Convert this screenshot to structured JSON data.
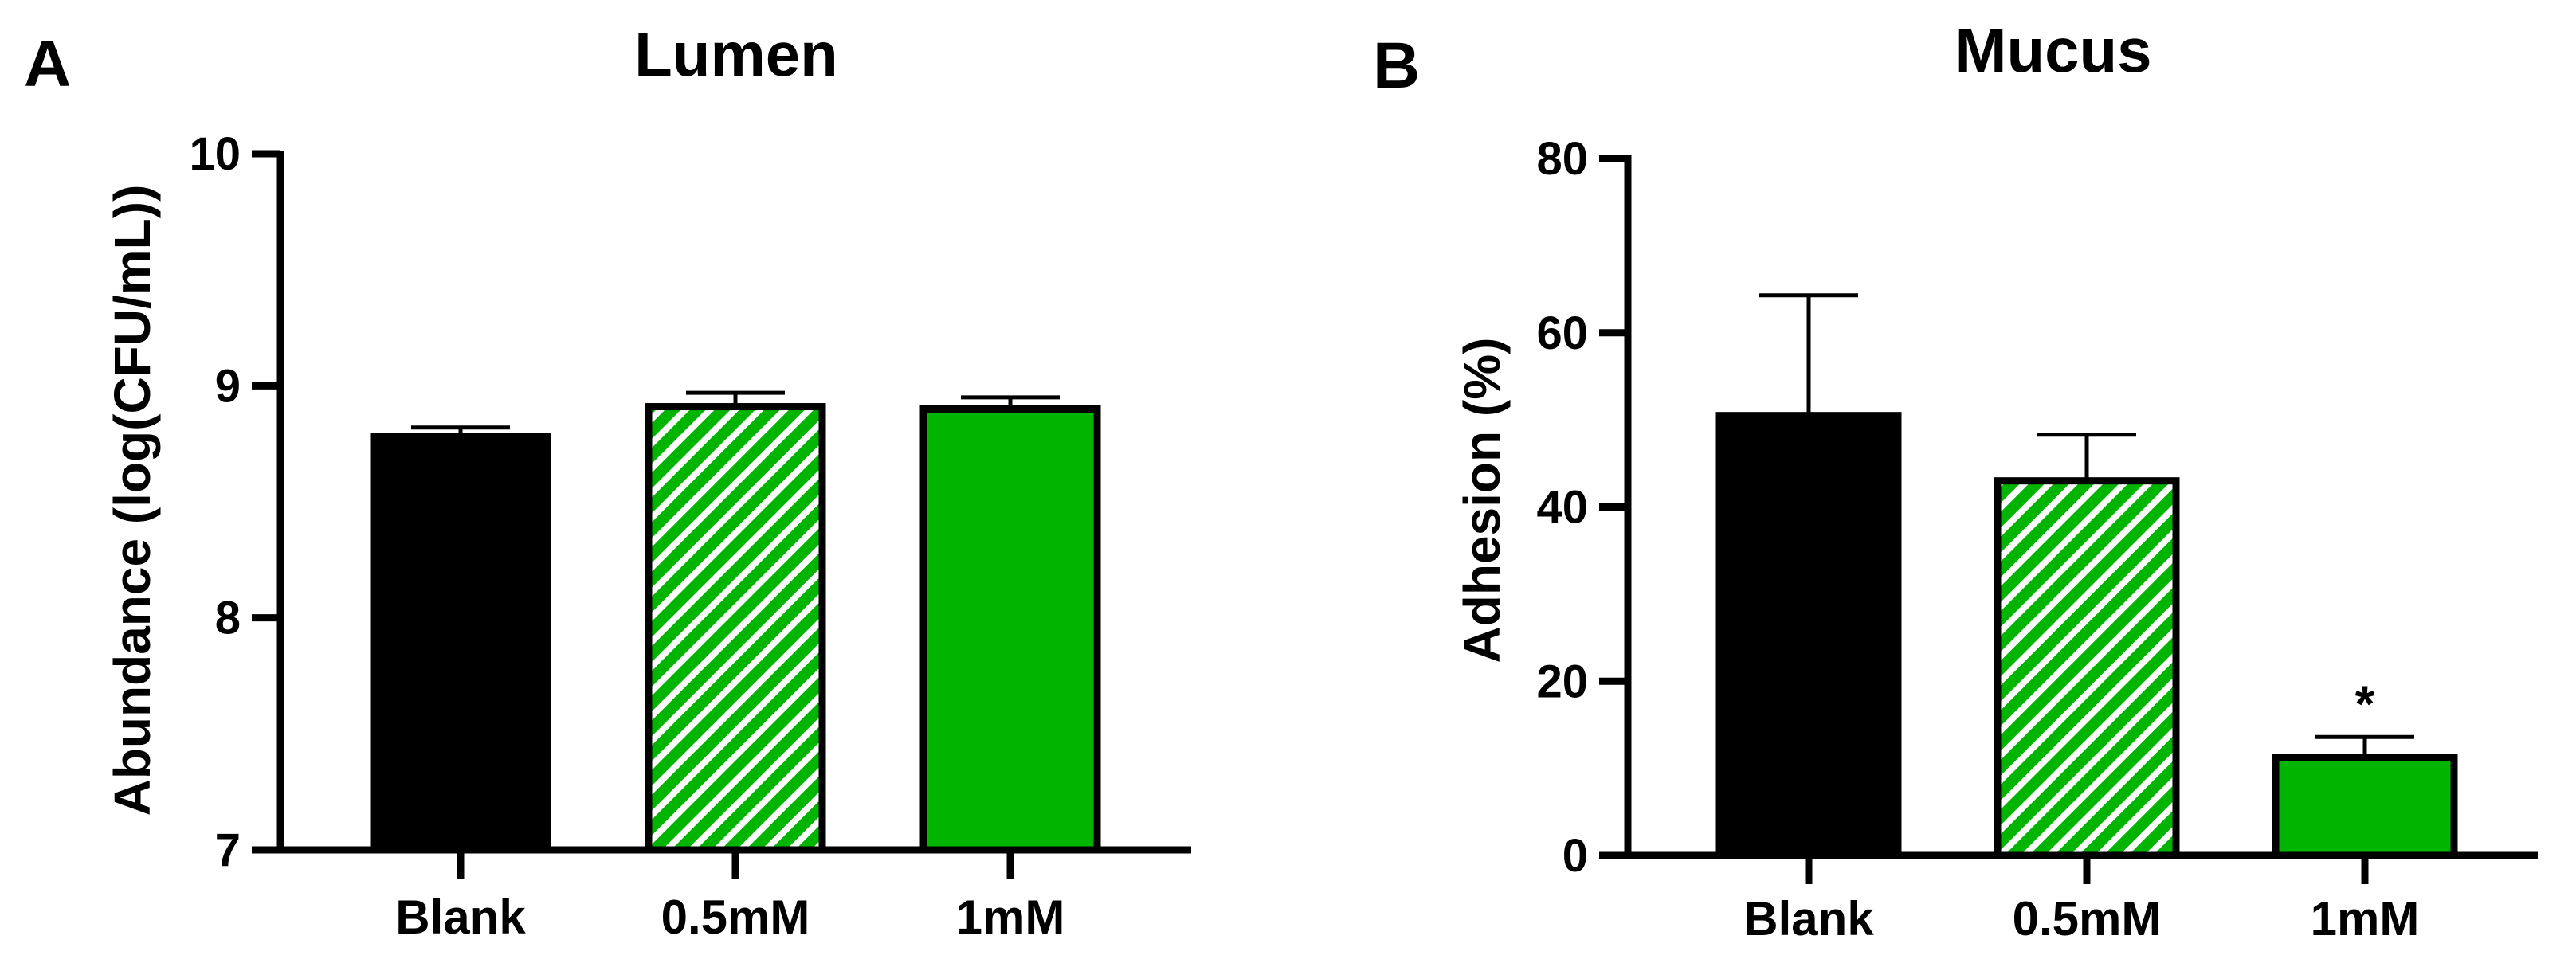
{
  "colors": {
    "ink": "#000000",
    "green": "#00B400",
    "hatch_bg": "#00B400",
    "hatch_line": "#ffffff"
  },
  "chart_data": [
    {
      "type": "bar",
      "panel": "A",
      "title": "Lumen",
      "xlabel": "",
      "ylabel": "Abundance (log(CFU/mL))",
      "categories": [
        "Blank",
        "0.5mM",
        "1mM"
      ],
      "values": [
        8.78,
        8.91,
        8.9
      ],
      "errors": [
        0.04,
        0.06,
        0.05
      ],
      "fills": [
        "solid-black",
        "hatched-green",
        "solid-green"
      ],
      "ylim": [
        7,
        10
      ],
      "yticks": [
        "7",
        "8",
        "9",
        "10"
      ],
      "annotations": [
        "",
        "",
        ""
      ],
      "grid": false
    },
    {
      "type": "bar",
      "panel": "B",
      "title": "Mucus",
      "xlabel": "",
      "ylabel": "Adhesion (%)",
      "categories": [
        "Blank",
        "0.5mM",
        "1mM"
      ],
      "values": [
        50.5,
        43,
        11.2
      ],
      "errors": [
        13.8,
        5.3,
        2.4
      ],
      "fills": [
        "solid-black",
        "hatched-green",
        "solid-green"
      ],
      "ylim": [
        0,
        80
      ],
      "yticks": [
        "0",
        "20",
        "40",
        "60",
        "80"
      ],
      "annotations": [
        "",
        "",
        "*"
      ],
      "grid": false
    }
  ]
}
